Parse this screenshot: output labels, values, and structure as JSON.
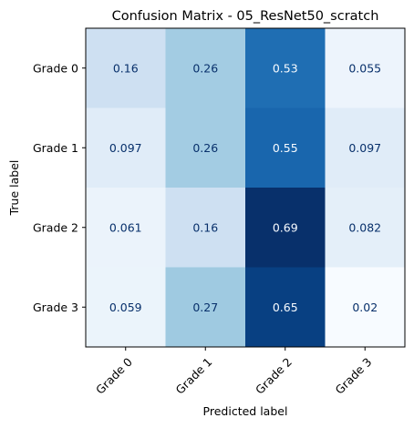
{
  "chart_data": {
    "type": "heatmap",
    "title": "Confusion Matrix - 05_ResNet50_scratch",
    "xlabel": "Predicted label",
    "ylabel": "True label",
    "x_categories": [
      "Grade 0",
      "Grade 1",
      "Grade 2",
      "Grade 3"
    ],
    "y_categories": [
      "Grade 0",
      "Grade 1",
      "Grade 2",
      "Grade 3"
    ],
    "values": [
      [
        0.16,
        0.26,
        0.53,
        0.055
      ],
      [
        0.097,
        0.26,
        0.55,
        0.097
      ],
      [
        0.061,
        0.16,
        0.69,
        0.082
      ],
      [
        0.059,
        0.27,
        0.65,
        0.02
      ]
    ],
    "value_labels": [
      [
        "0.16",
        "0.26",
        "0.53",
        "0.055"
      ],
      [
        "0.097",
        "0.26",
        "0.55",
        "0.097"
      ],
      [
        "0.061",
        "0.16",
        "0.69",
        "0.082"
      ],
      [
        "0.059",
        "0.27",
        "0.65",
        "0.02"
      ]
    ],
    "colormap": "Blues",
    "colorbar": false,
    "grid": false
  }
}
